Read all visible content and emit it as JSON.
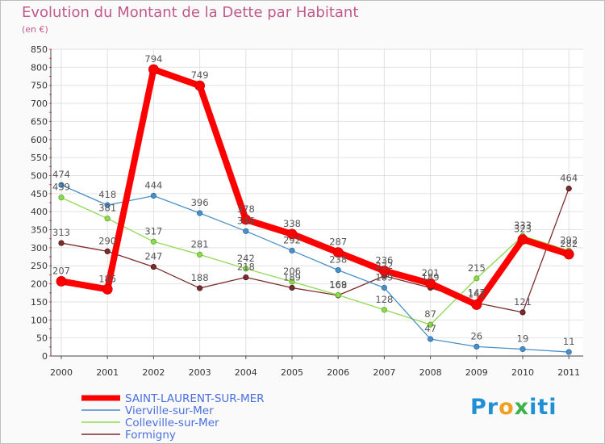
{
  "title": "Evolution du Montant de la Dette par Habitant",
  "subtitle": "(en €)",
  "logo": {
    "text": "Proxiti"
  },
  "chart_data": {
    "type": "line",
    "x": [
      "2000",
      "2001",
      "2002",
      "2003",
      "2004",
      "2005",
      "2006",
      "2007",
      "2008",
      "2009",
      "2010",
      "2011"
    ],
    "ylim": [
      0,
      850
    ],
    "yticks": [
      0,
      50,
      100,
      150,
      200,
      250,
      300,
      350,
      400,
      450,
      500,
      550,
      600,
      650,
      700,
      750,
      800,
      850
    ],
    "grid": true,
    "legend_position": "bottom-left",
    "series": [
      {
        "name": "SAINT-LAURENT-SUR-MER",
        "color": "#ff0000",
        "values": [
          207,
          185,
          794,
          749,
          378,
          338,
          287,
          236,
          201,
          142,
          323,
          282
        ]
      },
      {
        "name": "Vierville-sur-Mer",
        "color": "#4a90c8",
        "values": [
          474,
          418,
          444,
          396,
          346,
          292,
          238,
          189,
          47,
          26,
          19,
          11
        ]
      },
      {
        "name": "Colleville-sur-Mer",
        "color": "#8fd94f",
        "values": [
          439,
          381,
          317,
          281,
          242,
          206,
          169,
          128,
          87,
          215,
          333,
          292
        ]
      },
      {
        "name": "Formigny",
        "color": "#7b2d2d",
        "values": [
          313,
          290,
          247,
          188,
          218,
          189,
          168,
          222,
          189,
          147,
          121,
          464
        ]
      }
    ]
  }
}
